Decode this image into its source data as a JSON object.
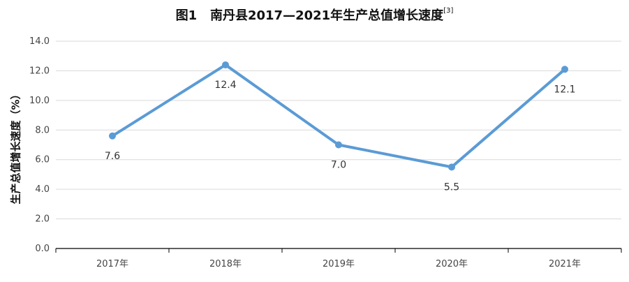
{
  "title": {
    "prefix": "图1",
    "main": "南丹县2017—2021年生产总值增长速度",
    "ref": "[3]"
  },
  "chart_data": {
    "type": "line",
    "categories": [
      "2017年",
      "2018年",
      "2019年",
      "2020年",
      "2021年"
    ],
    "series": [
      {
        "name": "",
        "values": [
          7.6,
          12.4,
          7.0,
          5.5,
          12.1
        ],
        "labels": [
          "7.6",
          "12.4",
          "7.0",
          "5.5",
          "12.1"
        ]
      }
    ],
    "ylabel": "生产总值增长速度（%）",
    "xlabel": "",
    "ylim": [
      0,
      14
    ],
    "yticks": [
      "0.0",
      "2.0",
      "4.0",
      "6.0",
      "8.0",
      "10.0",
      "12.0",
      "14.0"
    ],
    "grid": true,
    "legend": "none",
    "colors": {
      "line": "#5b9bd5",
      "grid": "#d9d9d9",
      "axis": "#000000"
    }
  }
}
